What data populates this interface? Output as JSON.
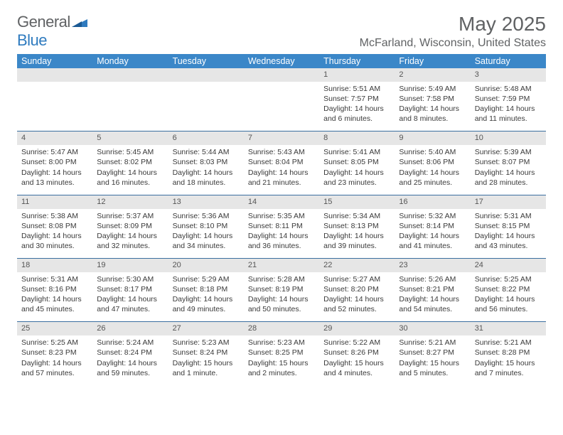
{
  "logo": {
    "text1": "General",
    "text2": "Blue"
  },
  "title": "May 2025",
  "location": "McFarland, Wisconsin, United States",
  "colors": {
    "header_bg": "#3b87c8",
    "header_text": "#ffffff",
    "daynum_bg": "#e6e6e6",
    "border": "#3b6fa0",
    "text": "#3a3a3a",
    "title_color": "#606264"
  },
  "dayHeaders": [
    "Sunday",
    "Monday",
    "Tuesday",
    "Wednesday",
    "Thursday",
    "Friday",
    "Saturday"
  ],
  "weeks": [
    [
      null,
      null,
      null,
      null,
      {
        "n": "1",
        "sr": "5:51 AM",
        "ss": "7:57 PM",
        "dl": "14 hours and 6 minutes."
      },
      {
        "n": "2",
        "sr": "5:49 AM",
        "ss": "7:58 PM",
        "dl": "14 hours and 8 minutes."
      },
      {
        "n": "3",
        "sr": "5:48 AM",
        "ss": "7:59 PM",
        "dl": "14 hours and 11 minutes."
      }
    ],
    [
      {
        "n": "4",
        "sr": "5:47 AM",
        "ss": "8:00 PM",
        "dl": "14 hours and 13 minutes."
      },
      {
        "n": "5",
        "sr": "5:45 AM",
        "ss": "8:02 PM",
        "dl": "14 hours and 16 minutes."
      },
      {
        "n": "6",
        "sr": "5:44 AM",
        "ss": "8:03 PM",
        "dl": "14 hours and 18 minutes."
      },
      {
        "n": "7",
        "sr": "5:43 AM",
        "ss": "8:04 PM",
        "dl": "14 hours and 21 minutes."
      },
      {
        "n": "8",
        "sr": "5:41 AM",
        "ss": "8:05 PM",
        "dl": "14 hours and 23 minutes."
      },
      {
        "n": "9",
        "sr": "5:40 AM",
        "ss": "8:06 PM",
        "dl": "14 hours and 25 minutes."
      },
      {
        "n": "10",
        "sr": "5:39 AM",
        "ss": "8:07 PM",
        "dl": "14 hours and 28 minutes."
      }
    ],
    [
      {
        "n": "11",
        "sr": "5:38 AM",
        "ss": "8:08 PM",
        "dl": "14 hours and 30 minutes."
      },
      {
        "n": "12",
        "sr": "5:37 AM",
        "ss": "8:09 PM",
        "dl": "14 hours and 32 minutes."
      },
      {
        "n": "13",
        "sr": "5:36 AM",
        "ss": "8:10 PM",
        "dl": "14 hours and 34 minutes."
      },
      {
        "n": "14",
        "sr": "5:35 AM",
        "ss": "8:11 PM",
        "dl": "14 hours and 36 minutes."
      },
      {
        "n": "15",
        "sr": "5:34 AM",
        "ss": "8:13 PM",
        "dl": "14 hours and 39 minutes."
      },
      {
        "n": "16",
        "sr": "5:32 AM",
        "ss": "8:14 PM",
        "dl": "14 hours and 41 minutes."
      },
      {
        "n": "17",
        "sr": "5:31 AM",
        "ss": "8:15 PM",
        "dl": "14 hours and 43 minutes."
      }
    ],
    [
      {
        "n": "18",
        "sr": "5:31 AM",
        "ss": "8:16 PM",
        "dl": "14 hours and 45 minutes."
      },
      {
        "n": "19",
        "sr": "5:30 AM",
        "ss": "8:17 PM",
        "dl": "14 hours and 47 minutes."
      },
      {
        "n": "20",
        "sr": "5:29 AM",
        "ss": "8:18 PM",
        "dl": "14 hours and 49 minutes."
      },
      {
        "n": "21",
        "sr": "5:28 AM",
        "ss": "8:19 PM",
        "dl": "14 hours and 50 minutes."
      },
      {
        "n": "22",
        "sr": "5:27 AM",
        "ss": "8:20 PM",
        "dl": "14 hours and 52 minutes."
      },
      {
        "n": "23",
        "sr": "5:26 AM",
        "ss": "8:21 PM",
        "dl": "14 hours and 54 minutes."
      },
      {
        "n": "24",
        "sr": "5:25 AM",
        "ss": "8:22 PM",
        "dl": "14 hours and 56 minutes."
      }
    ],
    [
      {
        "n": "25",
        "sr": "5:25 AM",
        "ss": "8:23 PM",
        "dl": "14 hours and 57 minutes."
      },
      {
        "n": "26",
        "sr": "5:24 AM",
        "ss": "8:24 PM",
        "dl": "14 hours and 59 minutes."
      },
      {
        "n": "27",
        "sr": "5:23 AM",
        "ss": "8:24 PM",
        "dl": "15 hours and 1 minute."
      },
      {
        "n": "28",
        "sr": "5:23 AM",
        "ss": "8:25 PM",
        "dl": "15 hours and 2 minutes."
      },
      {
        "n": "29",
        "sr": "5:22 AM",
        "ss": "8:26 PM",
        "dl": "15 hours and 4 minutes."
      },
      {
        "n": "30",
        "sr": "5:21 AM",
        "ss": "8:27 PM",
        "dl": "15 hours and 5 minutes."
      },
      {
        "n": "31",
        "sr": "5:21 AM",
        "ss": "8:28 PM",
        "dl": "15 hours and 7 minutes."
      }
    ]
  ],
  "labels": {
    "sunrise": "Sunrise:",
    "sunset": "Sunset:",
    "daylight": "Daylight:"
  }
}
